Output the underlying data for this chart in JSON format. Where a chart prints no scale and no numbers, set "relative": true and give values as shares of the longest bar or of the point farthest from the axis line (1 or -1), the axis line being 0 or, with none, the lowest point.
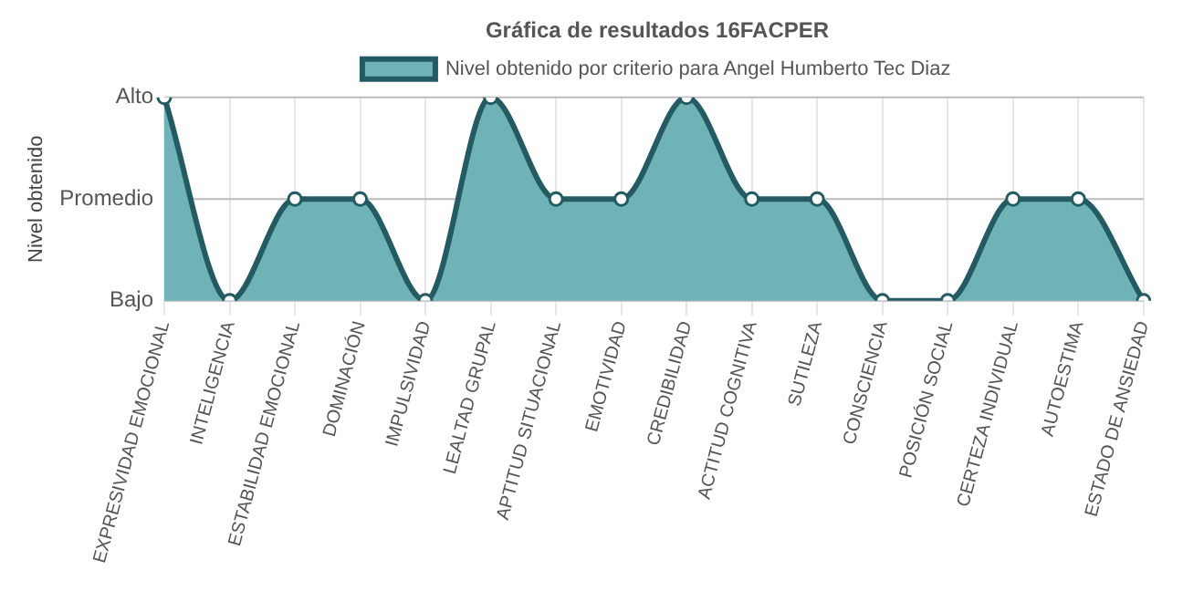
{
  "chart_data": {
    "type": "area",
    "title": "Gráfica de resultados 16FACPER",
    "ylabel": "Nivel obtenido",
    "relative": true,
    "categories": [
      "EXPRESIVIDAD EMOCIONAL",
      "INTELIGENCIA",
      "ESTABILIDAD EMOCIONAL",
      "DOMINACIÓN",
      "IMPULSIVIDAD",
      "LEALTAD GRUPAL",
      "APTITUD SITUACIONAL",
      "EMOTIVIDAD",
      "CREDIBILIDAD",
      "ACTITUD COGNITIVA",
      "SUTILEZA",
      "CONSCIENCIA",
      "POSICIÓN SOCIAL",
      "CERTEZA INDIVIDUAL",
      "AUTOESTIMA",
      "ESTADO DE ANSIEDAD"
    ],
    "series": [
      {
        "name": "Nivel obtenido por criterio para Angel Humberto Tec Diaz",
        "color": "#6fb3b6",
        "values": [
          1,
          0,
          0.5,
          0.5,
          0,
          1,
          0.5,
          0.5,
          1,
          0.5,
          0.5,
          0,
          0,
          0.5,
          0.5,
          0
        ]
      }
    ],
    "ref_lines": [
      {
        "axis": "y",
        "value": 0,
        "label": "Bajo",
        "color": "#bbbbbb"
      },
      {
        "axis": "y",
        "value": 0.5,
        "label": "Promedio",
        "color": "#bbbbbb"
      },
      {
        "axis": "y",
        "value": 1,
        "label": "Alto",
        "color": "#bbbbbb"
      }
    ],
    "grid": "x",
    "legend": "top",
    "marker": "circle"
  }
}
